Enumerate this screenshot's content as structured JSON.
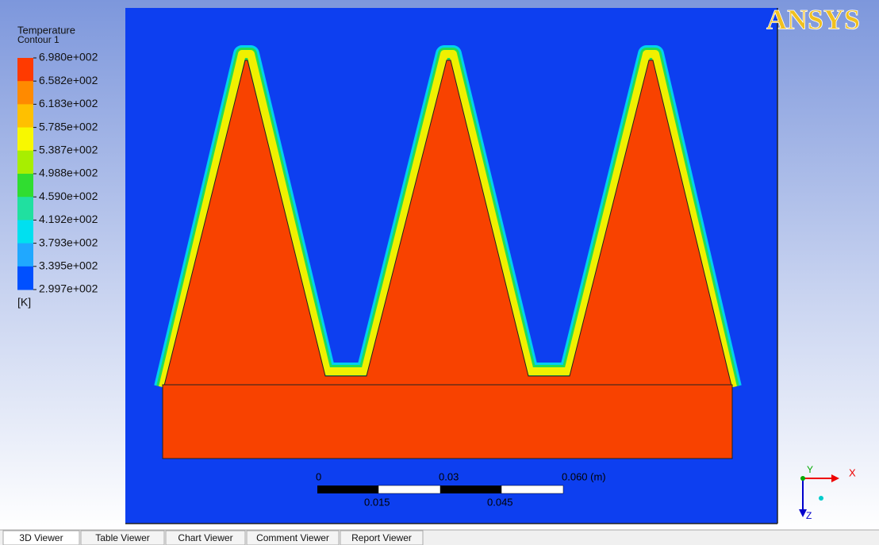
{
  "legend": {
    "title": "Temperature",
    "subtitle": "Contour 1",
    "levels": [
      "6.980e+002",
      "6.582e+002",
      "6.183e+002",
      "5.785e+002",
      "5.387e+002",
      "4.988e+002",
      "4.590e+002",
      "4.192e+002",
      "3.793e+002",
      "3.395e+002",
      "2.997e+002"
    ],
    "unit": "[K]"
  },
  "logo": "ANSYS",
  "scale": {
    "top_labels": [
      "0",
      "0.03",
      "0.060 (m)"
    ],
    "bottom_labels": [
      "0.015",
      "0.045"
    ]
  },
  "axes": {
    "y": "Y",
    "x": "X",
    "z": "Z"
  },
  "tabs": [
    "3D Viewer",
    "Table Viewer",
    "Chart Viewer",
    "Comment Viewer",
    "Report Viewer"
  ]
}
